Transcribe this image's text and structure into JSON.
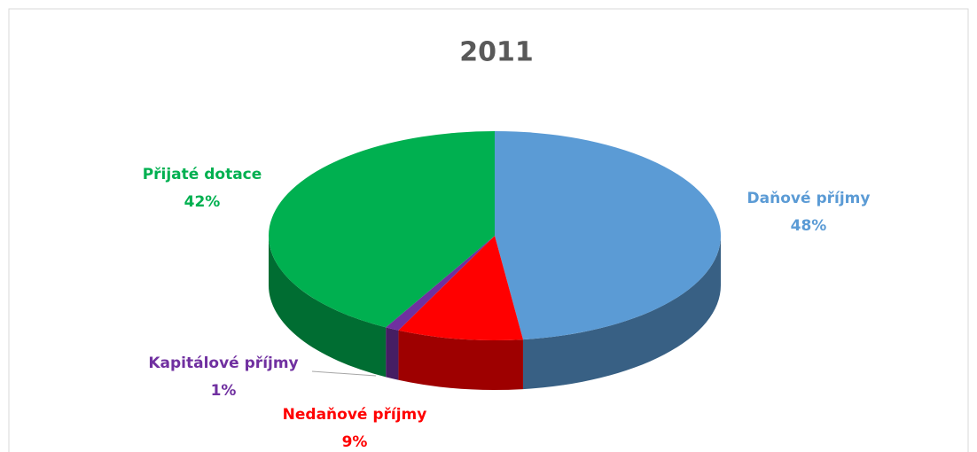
{
  "chart_data": {
    "type": "pie3d",
    "title": "2011",
    "categories": [
      "Daňové příjmy",
      "Nedaňové příjmy",
      "Kapitálové příjmy",
      "Přijaté dotace"
    ],
    "values": [
      48,
      9,
      1,
      42
    ],
    "value_labels": [
      "48%",
      "9%",
      "1%",
      "42%"
    ],
    "colors": [
      "#5b9bd5",
      "#ff0000",
      "#7030a0",
      "#00b050"
    ]
  }
}
